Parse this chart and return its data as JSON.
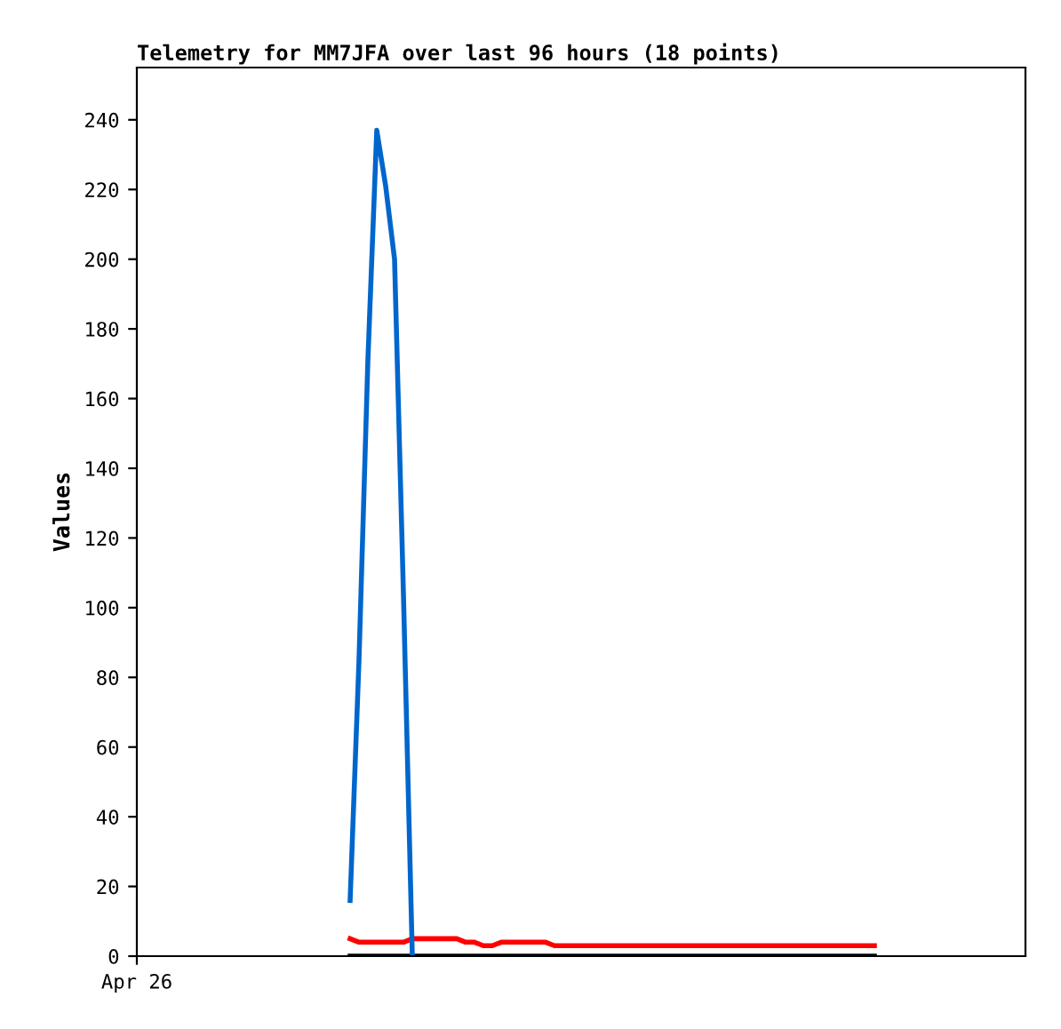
{
  "chart_data": {
    "type": "line",
    "title": "Telemetry for MM7JFA over last 96 hours (18 points)",
    "ylabel": "Values",
    "categories": [
      "Apr 26",
      null,
      null,
      null,
      null,
      null,
      null,
      null,
      null,
      null,
      null,
      null,
      null,
      null,
      null,
      null,
      null,
      null,
      null,
      null,
      null,
      null,
      null,
      null,
      null,
      null,
      null,
      null,
      null,
      null,
      null,
      null,
      null,
      null,
      null,
      null,
      null,
      null,
      null,
      null,
      null,
      null,
      null,
      null,
      null,
      null,
      null,
      null,
      null,
      null,
      null,
      null,
      null,
      null,
      null,
      null,
      null,
      null,
      null,
      null,
      null,
      null,
      null,
      null,
      null,
      null,
      null,
      null,
      null,
      null,
      null,
      null,
      null,
      null,
      null,
      null,
      null,
      null,
      null,
      null,
      null,
      null,
      null,
      null,
      null,
      null,
      null,
      null,
      null,
      null,
      null,
      null,
      null,
      null,
      null,
      null,
      null,
      null,
      null,
      null,
      null
    ],
    "ylim": [
      0,
      255
    ],
    "yticks": [
      0,
      20,
      40,
      60,
      80,
      100,
      120,
      140,
      160,
      180,
      200,
      220,
      240
    ],
    "grid": false,
    "legend": false,
    "marker": "none",
    "line_style": "solid",
    "series": [
      {
        "color": "#000000",
        "values": [
          null,
          null,
          null,
          null,
          null,
          null,
          null,
          null,
          null,
          null,
          null,
          null,
          null,
          null,
          null,
          null,
          null,
          null,
          null,
          null,
          null,
          null,
          null,
          null,
          0,
          0,
          0,
          0,
          0,
          0,
          0,
          0,
          0,
          0,
          0,
          0,
          0,
          0,
          0,
          0,
          0,
          0,
          0,
          0,
          0,
          0,
          0,
          0,
          0,
          0,
          0,
          0,
          0,
          0,
          0,
          0,
          0,
          0,
          0,
          0,
          0,
          0,
          0,
          0,
          0,
          0,
          0,
          0,
          0,
          0,
          0,
          0,
          0,
          0,
          0,
          0,
          0,
          0,
          0,
          0,
          0,
          0,
          0,
          0,
          null,
          null,
          null,
          null,
          null,
          null,
          null,
          null,
          null,
          null,
          null,
          null,
          null,
          null,
          null,
          null,
          null
        ]
      },
      {
        "color": "#ff0000",
        "values": [
          null,
          null,
          null,
          null,
          null,
          null,
          null,
          null,
          null,
          null,
          null,
          null,
          null,
          null,
          null,
          null,
          null,
          null,
          null,
          null,
          null,
          null,
          null,
          null,
          5,
          4,
          4,
          4,
          4,
          4,
          4,
          5,
          5,
          5,
          5,
          5,
          5,
          4,
          4,
          3,
          3,
          4,
          4,
          4,
          4,
          4,
          4,
          3,
          3,
          3,
          3,
          3,
          3,
          3,
          3,
          3,
          3,
          3,
          3,
          3,
          3,
          3,
          3,
          3,
          3,
          3,
          3,
          3,
          3,
          3,
          3,
          3,
          3,
          3,
          3,
          3,
          3,
          3,
          3,
          3,
          3,
          3,
          3,
          3,
          null,
          null,
          null,
          null,
          null,
          null,
          null,
          null,
          null,
          null,
          null,
          null,
          null,
          null,
          null,
          null,
          null
        ]
      },
      {
        "color": "#0066cc",
        "values": [
          null,
          null,
          null,
          null,
          null,
          null,
          null,
          null,
          null,
          null,
          null,
          null,
          null,
          null,
          null,
          null,
          null,
          null,
          null,
          null,
          null,
          null,
          null,
          null,
          16,
          85,
          171,
          237,
          221,
          200,
          104,
          0,
          null,
          null,
          null,
          null,
          null,
          null,
          null,
          null,
          null,
          null,
          null,
          null,
          null,
          null,
          null,
          null,
          null,
          null,
          null,
          null,
          null,
          null,
          null,
          null,
          null,
          null,
          null,
          null,
          null,
          null,
          null,
          null,
          null,
          null,
          null,
          null,
          null,
          null,
          null,
          null,
          null,
          null,
          null,
          null,
          null,
          null,
          null,
          null,
          null,
          null,
          null,
          null,
          null,
          null,
          null,
          null,
          null,
          null,
          null,
          null,
          null,
          null,
          null,
          null,
          null,
          null,
          null,
          null,
          null
        ]
      }
    ]
  }
}
